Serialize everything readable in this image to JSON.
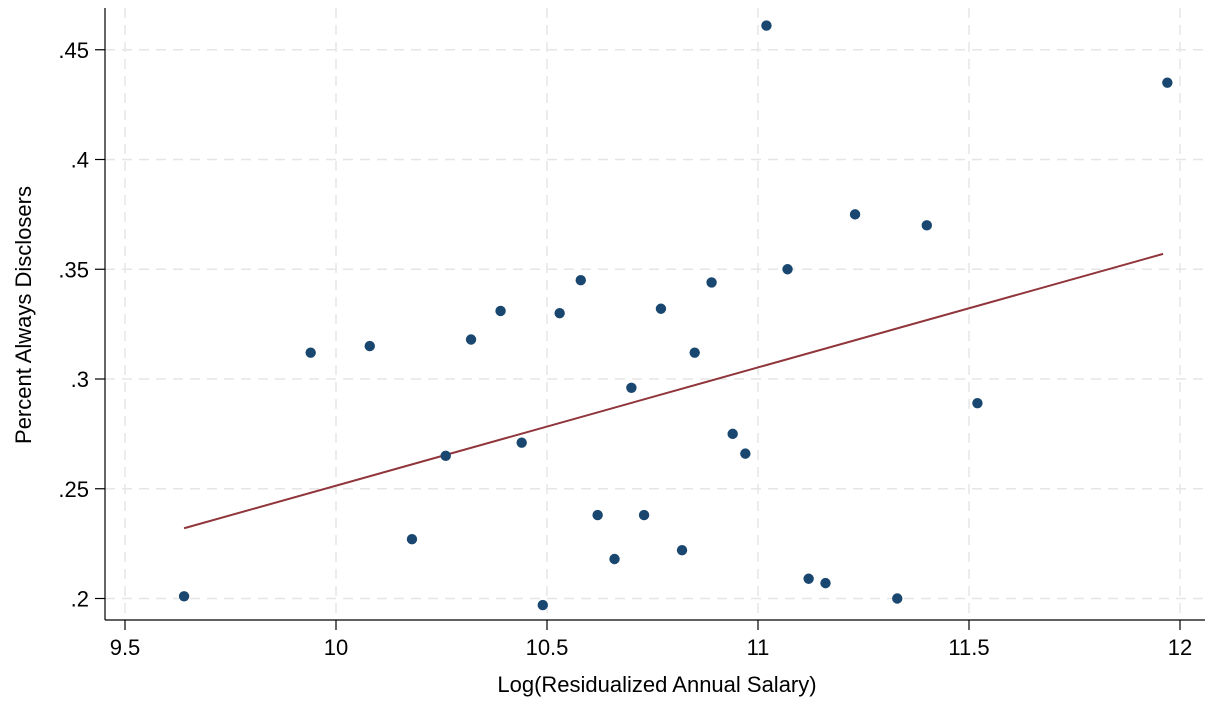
{
  "chart_data": {
    "type": "scatter",
    "title": "",
    "xlabel": "Log(Residualized Annual Salary)",
    "ylabel": "Percent Always Disclosers",
    "xlim": [
      9.45,
      12.0
    ],
    "ylim": [
      0.195,
      0.462
    ],
    "x_ticks": [
      9.5,
      10,
      10.5,
      11,
      11.5,
      12
    ],
    "x_tick_labels": [
      "9.5",
      "10",
      "10.5",
      "11",
      "11.5",
      "12"
    ],
    "y_ticks": [
      0.2,
      0.25,
      0.3,
      0.35,
      0.4,
      0.45
    ],
    "y_tick_labels": [
      ".2",
      ".25",
      ".3",
      ".35",
      ".4",
      ".45"
    ],
    "grid": true,
    "legend": "none",
    "colors": {
      "points": "#1a476f",
      "fit_line": "#90353b",
      "grid": "#e6e6e6"
    },
    "series": [
      {
        "kind": "points",
        "x": [
          9.64,
          9.94,
          10.08,
          10.18,
          10.26,
          10.32,
          10.39,
          10.44,
          10.49,
          10.53,
          10.58,
          10.62,
          10.66,
          10.7,
          10.73,
          10.77,
          10.82,
          10.85,
          10.89,
          10.94,
          10.97,
          11.02,
          11.07,
          11.12,
          11.16,
          11.23,
          11.33,
          11.4,
          11.52,
          11.97
        ],
        "y": [
          0.201,
          0.312,
          0.315,
          0.227,
          0.265,
          0.318,
          0.331,
          0.271,
          0.197,
          0.33,
          0.345,
          0.238,
          0.218,
          0.296,
          0.238,
          0.332,
          0.222,
          0.312,
          0.344,
          0.275,
          0.266,
          0.461,
          0.35,
          0.209,
          0.207,
          0.375,
          0.2,
          0.37,
          0.289,
          0.435
        ]
      },
      {
        "kind": "line",
        "x": [
          9.64,
          11.96
        ],
        "y": [
          0.232,
          0.357
        ]
      }
    ]
  }
}
